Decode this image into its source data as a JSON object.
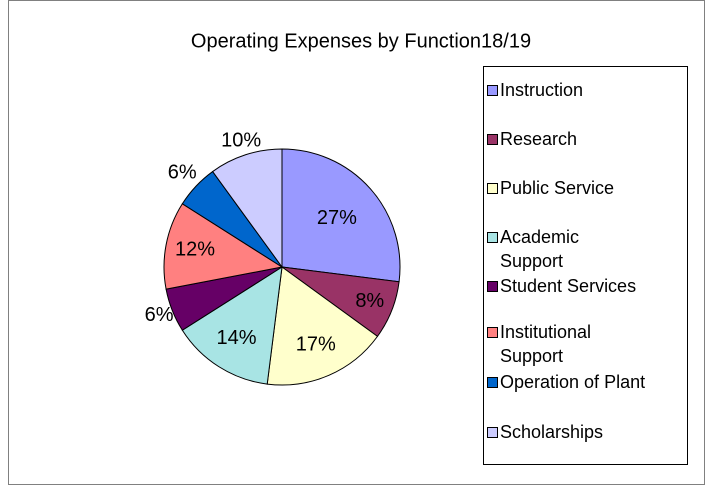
{
  "chart_data": {
    "type": "pie",
    "title": "Operating Expenses by Function18/19",
    "categories": [
      "Instruction",
      "Research",
      "Public Service",
      "Academic Support",
      "Student Services",
      "Institutional Support",
      "Operation of Plant",
      "Scholarships"
    ],
    "values": [
      27,
      8,
      17,
      14,
      6,
      12,
      6,
      10
    ],
    "value_labels": [
      "27%",
      "8%",
      "17%",
      "14%",
      "6%",
      "12%",
      "6%",
      "10%"
    ],
    "colors": [
      "#9999ff",
      "#993366",
      "#ffffcc",
      "#a8e4e4",
      "#660066",
      "#ff8080",
      "#0066cc",
      "#ccccff"
    ],
    "legend": "right"
  }
}
